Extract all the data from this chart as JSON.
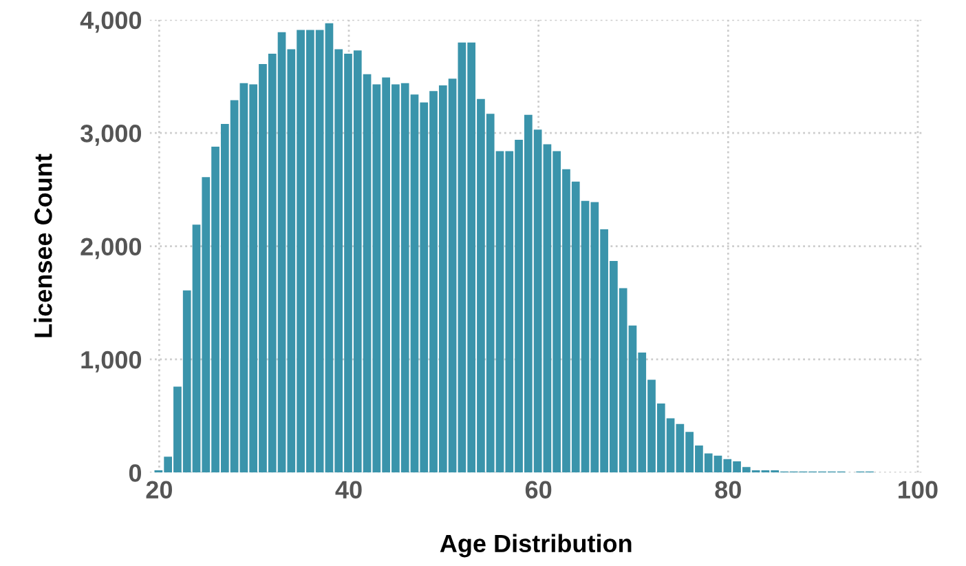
{
  "chart_data": {
    "type": "histogram",
    "xlabel": "Age Distribution",
    "ylabel": "Licensee Count",
    "color": "#3a94ab",
    "bins": [
      19.5,
      20.5,
      21.5,
      22.5,
      23.5,
      24.5,
      25.5,
      26.5,
      27.5,
      28.5,
      29.5,
      30.5,
      31.5,
      32.5,
      33.5,
      34.5,
      35.5,
      36.5,
      37.5,
      38.5,
      39.5,
      40.5,
      41.5,
      42.5,
      43.5,
      44.5,
      45.5,
      46.5,
      47.5,
      48.5,
      49.5,
      50.5,
      51.5,
      52.5,
      53.5,
      54.5,
      55.5,
      56.5,
      57.5,
      58.5,
      59.5,
      60.5,
      61.5,
      62.5,
      63.5,
      64.5,
      65.5,
      66.5,
      67.5,
      68.5,
      69.5,
      70.5,
      71.5,
      72.5,
      73.5,
      74.5,
      75.5,
      76.5,
      77.5,
      78.5,
      79.5,
      80.5,
      81.5,
      82.5,
      83.5,
      84.5,
      85.5,
      86.5,
      87.5,
      88.5,
      89.5,
      90.5,
      91.5,
      92.5,
      93.5,
      94.5,
      95.5
    ],
    "values": [
      20,
      140,
      760,
      1610,
      2190,
      2610,
      2880,
      3080,
      3290,
      3440,
      3430,
      3610,
      3700,
      3890,
      3740,
      3910,
      3910,
      3910,
      3970,
      3740,
      3700,
      3730,
      3520,
      3430,
      3490,
      3430,
      3440,
      3340,
      3270,
      3370,
      3420,
      3480,
      3800,
      3800,
      3300,
      3170,
      2840,
      2840,
      2940,
      3160,
      3030,
      2900,
      2840,
      2680,
      2570,
      2400,
      2390,
      2150,
      1870,
      1630,
      1300,
      1060,
      820,
      610,
      480,
      430,
      360,
      240,
      170,
      150,
      120,
      100,
      50,
      20,
      20,
      20,
      10,
      10,
      10,
      10,
      10,
      10,
      10,
      0,
      10,
      10
    ],
    "xlim": [
      19,
      100.5
    ],
    "xticks": [
      20,
      40,
      60,
      80,
      100
    ],
    "ylim": [
      0,
      4000
    ],
    "yticks": [
      {
        "value": 0,
        "label": "0"
      },
      {
        "value": 1000,
        "label": "1,000"
      },
      {
        "value": 2000,
        "label": "2,000"
      },
      {
        "value": 3000,
        "label": "3,000"
      },
      {
        "value": 4000,
        "label": "4,000"
      }
    ],
    "grid": true
  }
}
